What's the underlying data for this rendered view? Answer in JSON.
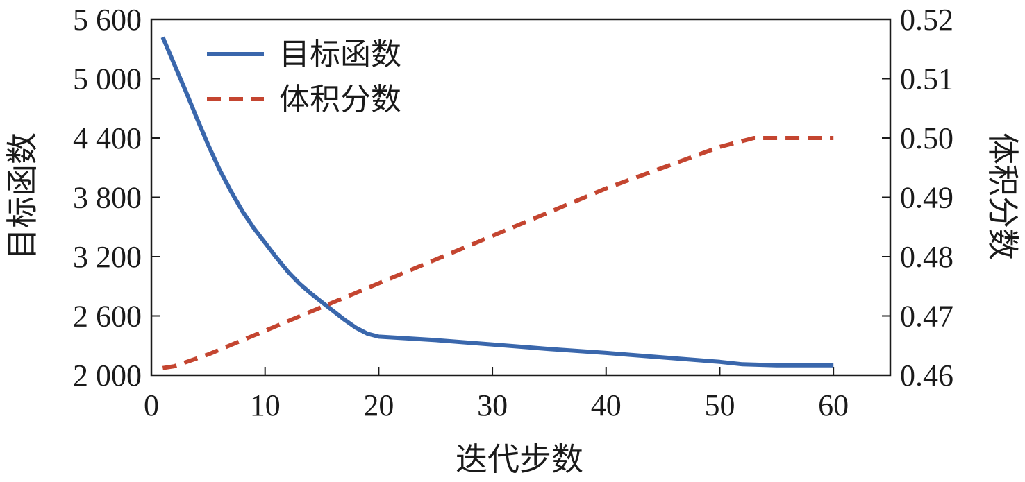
{
  "chart_data": {
    "type": "line",
    "title": "",
    "xlabel": "迭代步数",
    "ylabel_left": "目标函数",
    "ylabel_right": "体积分数",
    "xlim": [
      0,
      65
    ],
    "ylim_left": [
      2000,
      5600
    ],
    "ylim_right": [
      0.46,
      0.52
    ],
    "x_ticks": [
      0,
      10,
      20,
      30,
      40,
      50,
      60
    ],
    "x_tick_labels": [
      "0",
      "10",
      "20",
      "30",
      "40",
      "50",
      "60"
    ],
    "y_left_ticks": [
      2000,
      2600,
      3200,
      3800,
      4400,
      5000,
      5600
    ],
    "y_left_tick_labels": [
      "2 000",
      "2 600",
      "3 200",
      "3 800",
      "4 400",
      "5 000",
      "5 600"
    ],
    "y_right_ticks": [
      0.46,
      0.47,
      0.48,
      0.49,
      0.5,
      0.51,
      0.52
    ],
    "y_right_tick_labels": [
      "0.46",
      "0.47",
      "0.48",
      "0.49",
      "0.50",
      "0.51",
      "0.52"
    ],
    "grid": false,
    "legend_position": "top-left",
    "series": [
      {
        "name": "目标函数",
        "axis": "left",
        "color": "#3a67ac",
        "style": "solid",
        "x": [
          1,
          2,
          3,
          4,
          5,
          6,
          7,
          8,
          9,
          10,
          11,
          12,
          13,
          14,
          15,
          16,
          17,
          18,
          19,
          20,
          25,
          30,
          35,
          40,
          45,
          50,
          52,
          55,
          60
        ],
        "y": [
          5420,
          5150,
          4880,
          4600,
          4330,
          4080,
          3860,
          3660,
          3490,
          3340,
          3190,
          3050,
          2930,
          2830,
          2740,
          2650,
          2560,
          2480,
          2420,
          2390,
          2355,
          2310,
          2265,
          2225,
          2180,
          2135,
          2110,
          2100,
          2100
        ]
      },
      {
        "name": "体积分数",
        "axis": "right",
        "color": "#c44530",
        "style": "dashed",
        "x": [
          1,
          2,
          5,
          10,
          20,
          30,
          40,
          50,
          53,
          55,
          60
        ],
        "y": [
          0.4612,
          0.4615,
          0.4635,
          0.4675,
          0.4755,
          0.4835,
          0.4915,
          0.4985,
          0.5,
          0.5,
          0.5
        ]
      }
    ]
  }
}
